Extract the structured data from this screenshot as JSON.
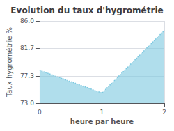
{
  "chart_data": {
    "type": "area",
    "title": "Evolution du taux d'hygrométrie",
    "xlabel": "heure par heure",
    "ylabel": "Taux hygrométrie %",
    "x": [
      0,
      1,
      2
    ],
    "values": [
      78.2,
      74.6,
      84.5
    ],
    "color": "#7bc8e0",
    "line_style": "dotted",
    "xlim": [
      0,
      2
    ],
    "xticks": [
      0,
      1,
      2
    ],
    "ylim": [
      73,
      86
    ],
    "yticks": [
      {
        "value": 73,
        "label": "73.0"
      },
      77.3,
      81.7,
      {
        "value": 86,
        "label": "86.0"
      }
    ],
    "grid": true
  }
}
